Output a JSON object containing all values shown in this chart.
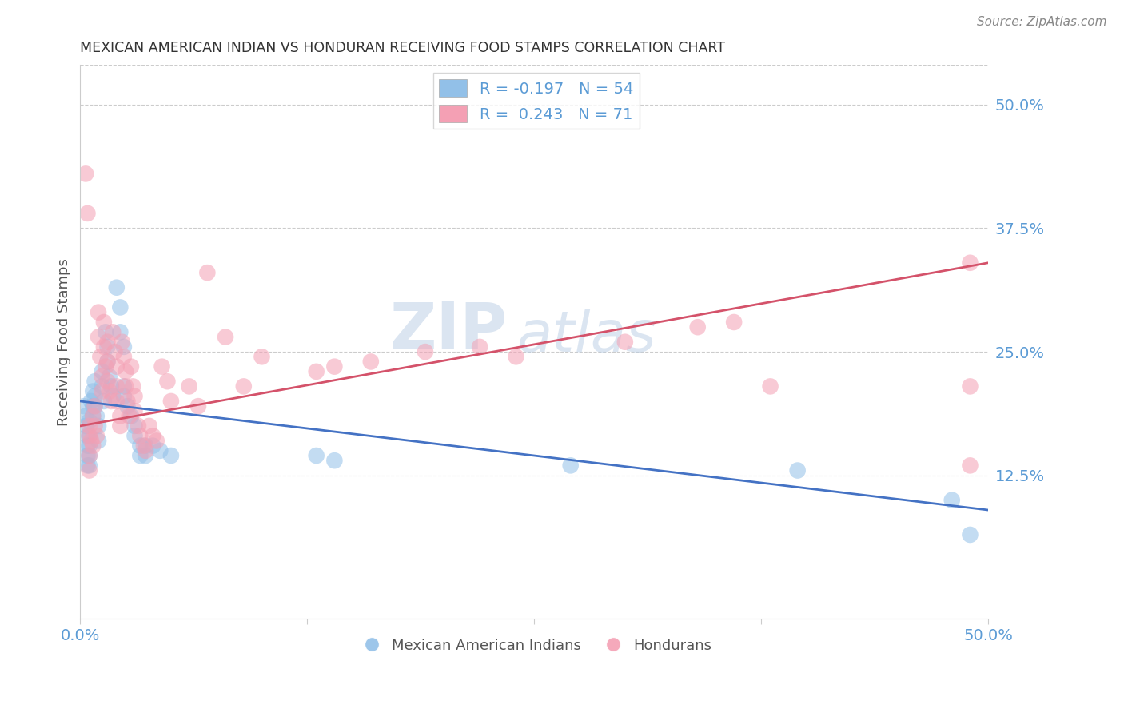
{
  "title": "MEXICAN AMERICAN INDIAN VS HONDURAN RECEIVING FOOD STAMPS CORRELATION CHART",
  "source": "Source: ZipAtlas.com",
  "ylabel": "Receiving Food Stamps",
  "xlim": [
    0.0,
    0.5
  ],
  "ylim": [
    -0.02,
    0.54
  ],
  "xticks": [
    0.0,
    0.125,
    0.25,
    0.375,
    0.5
  ],
  "xticklabels": [
    "0.0%",
    "",
    "",
    "",
    "50.0%"
  ],
  "ytick_positions": [
    0.125,
    0.25,
    0.375,
    0.5
  ],
  "ytick_labels": [
    "12.5%",
    "25.0%",
    "37.5%",
    "50.0%"
  ],
  "watermark": "ZIPatlas",
  "legend_r1": "R = -0.197",
  "legend_n1": "N = 54",
  "legend_r2": "R =  0.243",
  "legend_n2": "N = 71",
  "legend_label1": "Mexican American Indians",
  "legend_label2": "Hondurans",
  "blue_color": "#92C0E8",
  "pink_color": "#F4A0B4",
  "blue_line_color": "#4472C4",
  "pink_line_color": "#D4526A",
  "title_color": "#333333",
  "axis_label_color": "#555555",
  "tick_color": "#5B9BD5",
  "grid_color": "#CCCCCC",
  "blue_scatter": [
    [
      0.002,
      0.195
    ],
    [
      0.003,
      0.185
    ],
    [
      0.003,
      0.175
    ],
    [
      0.004,
      0.165
    ],
    [
      0.004,
      0.155
    ],
    [
      0.004,
      0.145
    ],
    [
      0.004,
      0.135
    ],
    [
      0.005,
      0.18
    ],
    [
      0.005,
      0.165
    ],
    [
      0.005,
      0.155
    ],
    [
      0.005,
      0.145
    ],
    [
      0.005,
      0.135
    ],
    [
      0.006,
      0.2
    ],
    [
      0.007,
      0.21
    ],
    [
      0.007,
      0.195
    ],
    [
      0.007,
      0.185
    ],
    [
      0.008,
      0.22
    ],
    [
      0.008,
      0.205
    ],
    [
      0.008,
      0.195
    ],
    [
      0.009,
      0.185
    ],
    [
      0.01,
      0.175
    ],
    [
      0.01,
      0.16
    ],
    [
      0.012,
      0.23
    ],
    [
      0.012,
      0.215
    ],
    [
      0.013,
      0.2
    ],
    [
      0.014,
      0.27
    ],
    [
      0.015,
      0.255
    ],
    [
      0.015,
      0.24
    ],
    [
      0.016,
      0.225
    ],
    [
      0.017,
      0.215
    ],
    [
      0.018,
      0.205
    ],
    [
      0.02,
      0.315
    ],
    [
      0.022,
      0.295
    ],
    [
      0.022,
      0.27
    ],
    [
      0.024,
      0.255
    ],
    [
      0.024,
      0.215
    ],
    [
      0.024,
      0.205
    ],
    [
      0.026,
      0.195
    ],
    [
      0.028,
      0.185
    ],
    [
      0.03,
      0.175
    ],
    [
      0.03,
      0.165
    ],
    [
      0.033,
      0.155
    ],
    [
      0.033,
      0.145
    ],
    [
      0.036,
      0.155
    ],
    [
      0.036,
      0.145
    ],
    [
      0.04,
      0.155
    ],
    [
      0.044,
      0.15
    ],
    [
      0.05,
      0.145
    ],
    [
      0.13,
      0.145
    ],
    [
      0.14,
      0.14
    ],
    [
      0.27,
      0.135
    ],
    [
      0.395,
      0.13
    ],
    [
      0.48,
      0.1
    ],
    [
      0.49,
      0.065
    ]
  ],
  "pink_scatter": [
    [
      0.003,
      0.43
    ],
    [
      0.004,
      0.39
    ],
    [
      0.005,
      0.175
    ],
    [
      0.005,
      0.165
    ],
    [
      0.005,
      0.145
    ],
    [
      0.005,
      0.13
    ],
    [
      0.006,
      0.16
    ],
    [
      0.007,
      0.185
    ],
    [
      0.007,
      0.155
    ],
    [
      0.008,
      0.195
    ],
    [
      0.008,
      0.175
    ],
    [
      0.009,
      0.165
    ],
    [
      0.01,
      0.29
    ],
    [
      0.01,
      0.265
    ],
    [
      0.011,
      0.245
    ],
    [
      0.012,
      0.225
    ],
    [
      0.012,
      0.21
    ],
    [
      0.013,
      0.28
    ],
    [
      0.013,
      0.255
    ],
    [
      0.014,
      0.235
    ],
    [
      0.015,
      0.26
    ],
    [
      0.015,
      0.24
    ],
    [
      0.015,
      0.22
    ],
    [
      0.016,
      0.21
    ],
    [
      0.017,
      0.2
    ],
    [
      0.018,
      0.27
    ],
    [
      0.019,
      0.25
    ],
    [
      0.02,
      0.235
    ],
    [
      0.02,
      0.215
    ],
    [
      0.02,
      0.2
    ],
    [
      0.022,
      0.185
    ],
    [
      0.022,
      0.175
    ],
    [
      0.023,
      0.26
    ],
    [
      0.024,
      0.245
    ],
    [
      0.025,
      0.23
    ],
    [
      0.025,
      0.215
    ],
    [
      0.026,
      0.2
    ],
    [
      0.027,
      0.185
    ],
    [
      0.028,
      0.235
    ],
    [
      0.029,
      0.215
    ],
    [
      0.03,
      0.205
    ],
    [
      0.03,
      0.19
    ],
    [
      0.032,
      0.175
    ],
    [
      0.033,
      0.165
    ],
    [
      0.035,
      0.155
    ],
    [
      0.036,
      0.15
    ],
    [
      0.038,
      0.175
    ],
    [
      0.04,
      0.165
    ],
    [
      0.042,
      0.16
    ],
    [
      0.045,
      0.235
    ],
    [
      0.048,
      0.22
    ],
    [
      0.05,
      0.2
    ],
    [
      0.06,
      0.215
    ],
    [
      0.065,
      0.195
    ],
    [
      0.07,
      0.33
    ],
    [
      0.08,
      0.265
    ],
    [
      0.09,
      0.215
    ],
    [
      0.1,
      0.245
    ],
    [
      0.13,
      0.23
    ],
    [
      0.14,
      0.235
    ],
    [
      0.16,
      0.24
    ],
    [
      0.19,
      0.25
    ],
    [
      0.22,
      0.255
    ],
    [
      0.24,
      0.245
    ],
    [
      0.3,
      0.26
    ],
    [
      0.34,
      0.275
    ],
    [
      0.36,
      0.28
    ],
    [
      0.38,
      0.215
    ],
    [
      0.49,
      0.135
    ],
    [
      0.49,
      0.215
    ],
    [
      0.49,
      0.34
    ]
  ],
  "blue_line_x": [
    0.0,
    0.5
  ],
  "blue_line_y": [
    0.2,
    0.09
  ],
  "pink_line_x": [
    0.0,
    0.5
  ],
  "pink_line_y": [
    0.175,
    0.34
  ]
}
